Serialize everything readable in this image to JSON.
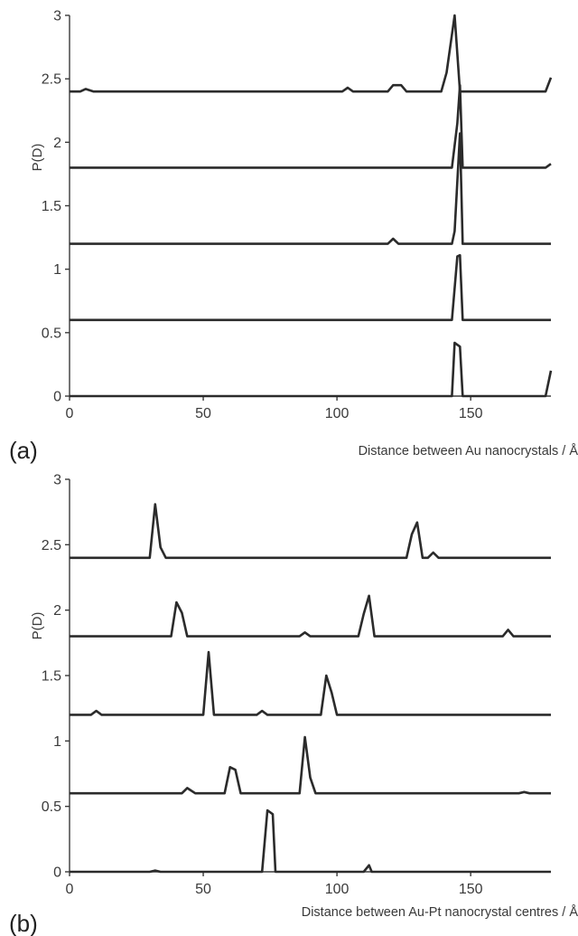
{
  "chart_data": [
    {
      "type": "line",
      "panel_label": "(a)",
      "xlabel": "Distance between Au nanocrystals / Å",
      "ylabel": "P(D)",
      "xlim": [
        0,
        180
      ],
      "ylim": [
        0,
        3
      ],
      "xticks": [
        0,
        50,
        100,
        150
      ],
      "yticks": [
        0,
        0.5,
        1,
        1.5,
        2,
        2.5,
        3
      ],
      "grid": false,
      "series": [
        {
          "x": [
            0,
            4,
            7,
            10,
            143,
            144,
            146,
            147,
            178,
            180
          ],
          "y": [
            0,
            0,
            0,
            0,
            0,
            0.42,
            0.39,
            0,
            0,
            0.2
          ]
        },
        {
          "x": [
            0,
            142,
            143,
            145,
            146,
            147,
            180
          ],
          "y": [
            0.6,
            0.6,
            0.6,
            1.1,
            1.11,
            0.6,
            0.6
          ]
        },
        {
          "x": [
            0,
            119,
            121,
            123,
            143,
            144,
            146,
            147,
            180
          ],
          "y": [
            1.2,
            1.2,
            1.24,
            1.2,
            1.2,
            1.3,
            2.07,
            1.2,
            1.2
          ]
        },
        {
          "x": [
            0,
            142,
            143,
            145,
            146,
            147,
            178,
            180
          ],
          "y": [
            1.8,
            1.8,
            1.8,
            2.15,
            2.45,
            1.8,
            1.8,
            1.83
          ]
        },
        {
          "x": [
            0,
            4,
            6,
            9,
            102,
            104,
            106,
            119,
            121,
            124,
            126,
            139,
            141,
            144,
            146,
            178,
            180
          ],
          "y": [
            2.4,
            2.4,
            2.42,
            2.4,
            2.4,
            2.43,
            2.4,
            2.4,
            2.45,
            2.45,
            2.4,
            2.4,
            2.55,
            3.0,
            2.4,
            2.4,
            2.51
          ]
        }
      ]
    },
    {
      "type": "line",
      "panel_label": "(b)",
      "xlabel": "Distance between Au-Pt nanocrystal centres / Å",
      "ylabel": "P(D)",
      "xlim": [
        0,
        180
      ],
      "ylim": [
        0,
        3
      ],
      "xticks": [
        0,
        50,
        100,
        150
      ],
      "yticks": [
        0,
        0.5,
        1,
        1.5,
        2,
        2.5,
        3
      ],
      "grid": false,
      "series": [
        {
          "x": [
            0,
            30,
            32,
            34,
            72,
            74,
            76,
            77,
            110,
            112,
            113,
            180
          ],
          "y": [
            0,
            0,
            0.01,
            0,
            0,
            0.47,
            0.44,
            0,
            0,
            0.05,
            0,
            0
          ]
        },
        {
          "x": [
            0,
            42,
            44,
            47,
            58,
            60,
            62,
            64,
            86,
            88,
            90,
            92,
            168,
            170,
            172,
            180
          ],
          "y": [
            0.6,
            0.6,
            0.64,
            0.6,
            0.6,
            0.8,
            0.78,
            0.6,
            0.6,
            1.03,
            0.72,
            0.6,
            0.6,
            0.61,
            0.6,
            0.6
          ]
        },
        {
          "x": [
            0,
            8,
            10,
            12,
            50,
            52,
            54,
            70,
            72,
            74,
            94,
            96,
            98,
            100,
            180
          ],
          "y": [
            1.2,
            1.2,
            1.23,
            1.2,
            1.2,
            1.68,
            1.2,
            1.2,
            1.23,
            1.2,
            1.2,
            1.5,
            1.37,
            1.2,
            1.2
          ]
        },
        {
          "x": [
            0,
            38,
            40,
            42,
            44,
            86,
            88,
            90,
            108,
            110,
            112,
            114,
            162,
            164,
            166,
            180
          ],
          "y": [
            1.8,
            1.8,
            2.06,
            1.98,
            1.8,
            1.8,
            1.83,
            1.8,
            1.8,
            1.97,
            2.11,
            1.8,
            1.8,
            1.85,
            1.8,
            1.8
          ]
        },
        {
          "x": [
            0,
            30,
            32,
            34,
            36,
            126,
            128,
            130,
            132,
            134,
            136,
            138,
            180
          ],
          "y": [
            2.4,
            2.4,
            2.81,
            2.48,
            2.4,
            2.4,
            2.58,
            2.67,
            2.4,
            2.4,
            2.44,
            2.4,
            2.4
          ]
        }
      ]
    }
  ]
}
